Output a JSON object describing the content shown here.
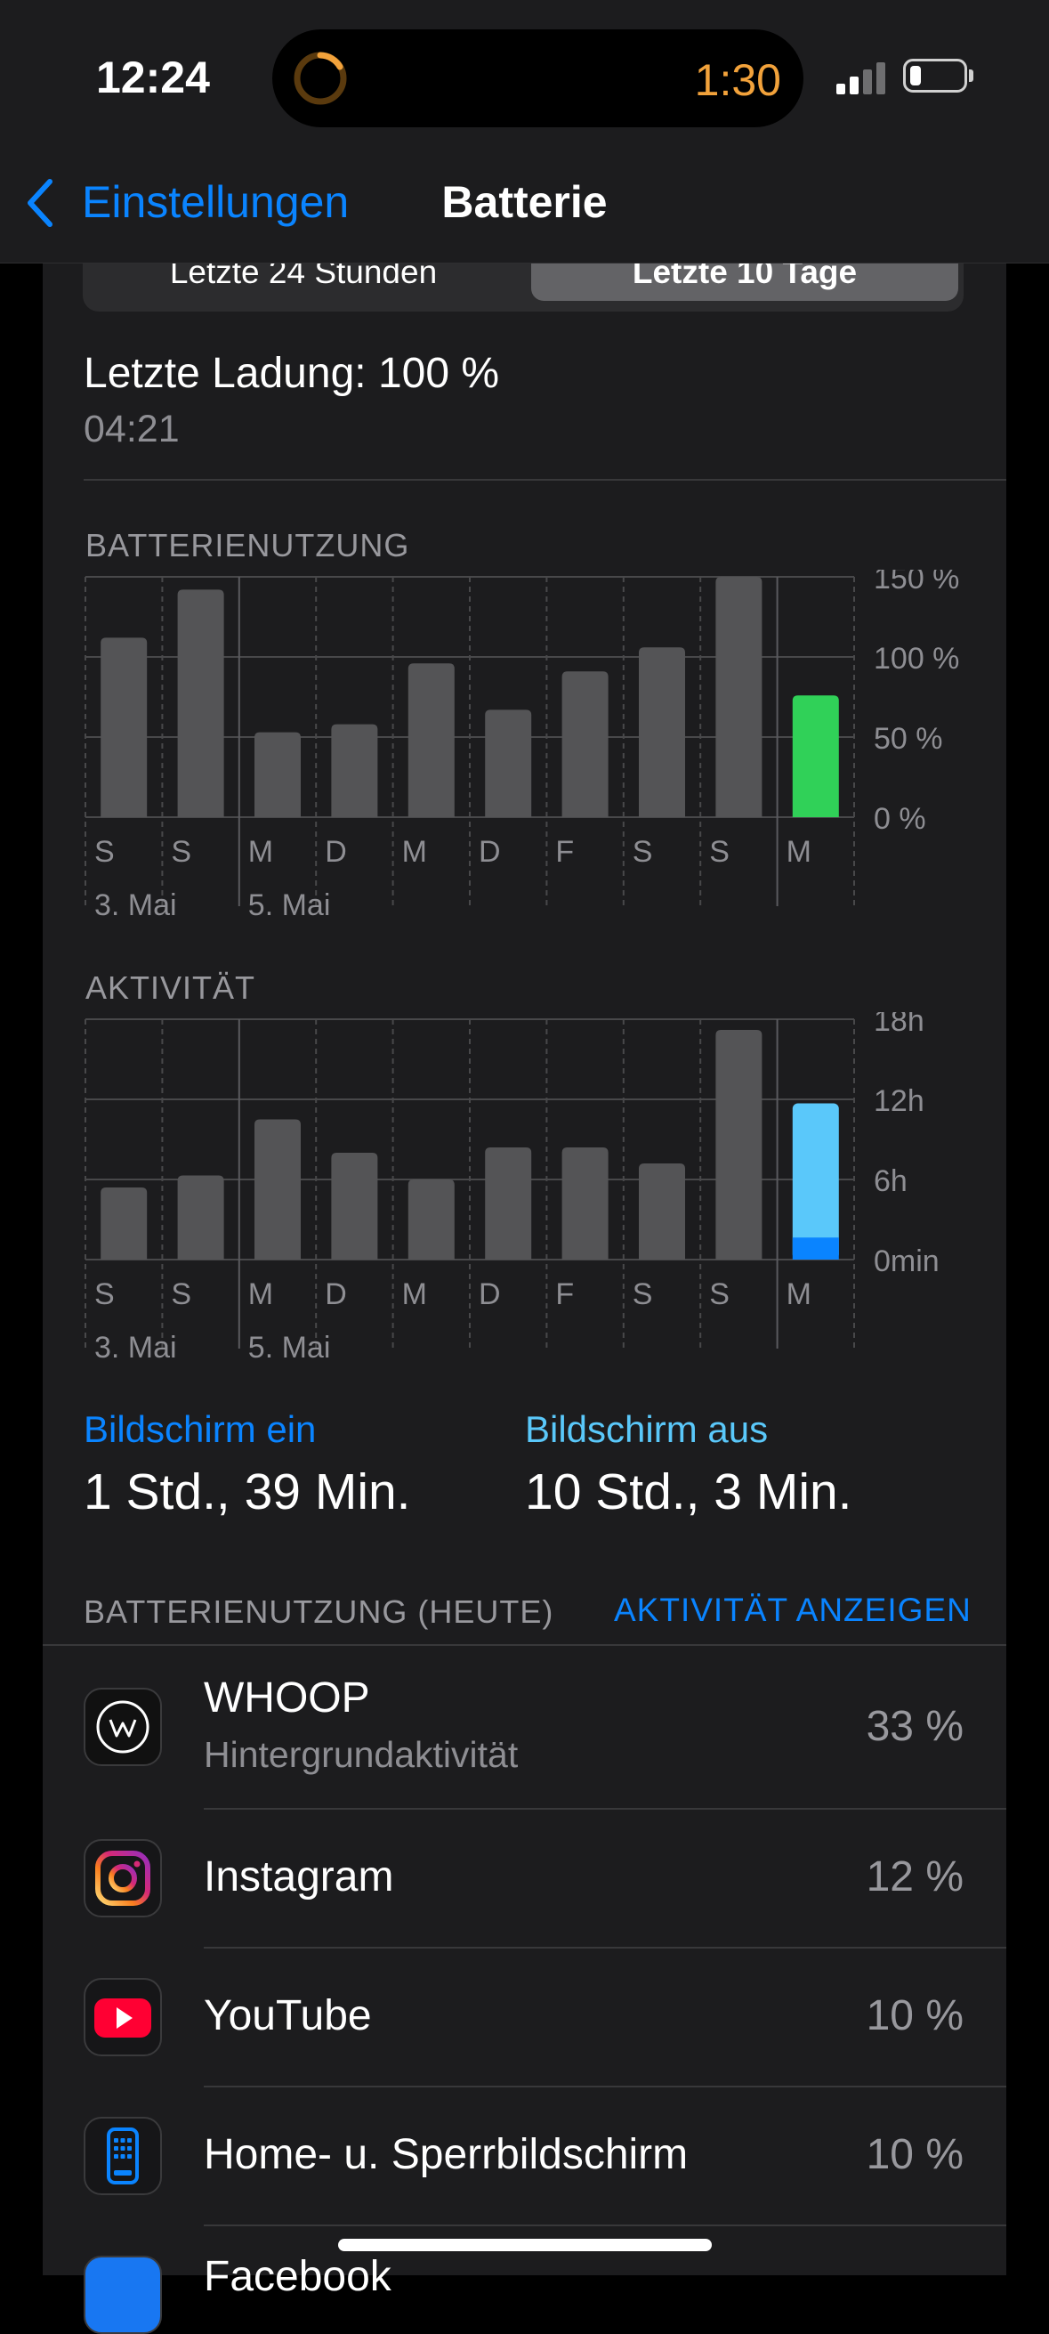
{
  "status_bar": {
    "time": "12:24",
    "timer": "1:30"
  },
  "nav": {
    "back_label": "Einstellungen",
    "title": "Batterie"
  },
  "segments": [
    {
      "label": "Letzte 24 Stunden",
      "selected": false
    },
    {
      "label": "Letzte 10 Tage",
      "selected": true
    }
  ],
  "last_charge": {
    "label": "Letzte Ladung: 100 %",
    "time": "04:21"
  },
  "colors": {
    "accent": "#0a84ff",
    "screen_off": "#5ac8fa",
    "green": "#30d158",
    "bar_gray": "#545456"
  },
  "chart_data": [
    {
      "type": "bar",
      "title": "BATTERIENUTZUNG",
      "categories": [
        "S",
        "S",
        "M",
        "D",
        "M",
        "D",
        "F",
        "S",
        "S",
        "M"
      ],
      "date_labels": [
        "3. Mai",
        "5. Mai"
      ],
      "ytick_labels": [
        "150 %",
        "100 %",
        "50 %",
        "0 %"
      ],
      "ylim": [
        0,
        150
      ],
      "values": [
        112,
        142,
        53,
        58,
        96,
        67,
        91,
        106,
        150,
        76
      ],
      "highlight_index": 9,
      "highlight_color": "#30d158"
    },
    {
      "type": "bar",
      "title": "AKTIVITÄT",
      "categories": [
        "S",
        "S",
        "M",
        "D",
        "M",
        "D",
        "F",
        "S",
        "S",
        "M"
      ],
      "date_labels": [
        "3. Mai",
        "5. Mai"
      ],
      "ytick_labels": [
        "18h",
        "12h",
        "6h",
        "0min"
      ],
      "ylim": [
        0,
        18
      ],
      "values": [
        5.4,
        6.3,
        10.5,
        8.0,
        6.0,
        8.4,
        8.4,
        7.2,
        17.2,
        11.7
      ],
      "today_split": {
        "screen_on_hours": 1.65,
        "screen_off_hours": 10.05
      },
      "highlight_index": 9
    }
  ],
  "screen_stats": {
    "on_label": "Bildschirm ein",
    "on_value": "1 Std., 39 Min.",
    "off_label": "Bildschirm aus",
    "off_value": "10 Std., 3 Min."
  },
  "usage_today": {
    "header": "BATTERIENUTZUNG (HEUTE)",
    "action": "AKTIVITÄT ANZEIGEN",
    "apps": [
      {
        "name": "WHOOP",
        "sub": "Hintergrundaktivität",
        "percent": "33 %",
        "icon": "whoop-icon"
      },
      {
        "name": "Instagram",
        "sub": "",
        "percent": "12 %",
        "icon": "instagram-icon"
      },
      {
        "name": "YouTube",
        "sub": "",
        "percent": "10 %",
        "icon": "youtube-icon"
      },
      {
        "name": "Home- u. Sperrbildschirm",
        "sub": "",
        "percent": "10 %",
        "icon": "home-screen-icon"
      },
      {
        "name": "Facebook",
        "sub": "",
        "percent": "",
        "icon": "facebook-icon"
      }
    ]
  }
}
